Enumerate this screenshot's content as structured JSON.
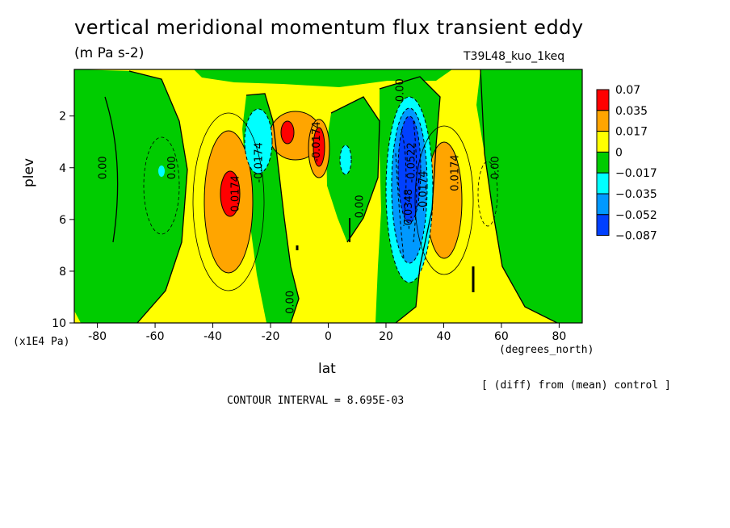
{
  "title": "vertical meridional momentum flux transient eddy",
  "units": "(m Pa s-2)",
  "run_id": "T39L48_kuo_1keq",
  "note": "[ (diff) from (mean) control ]",
  "contour_interval": "CONTOUR INTERVAL = 8.695E-03",
  "chart_data": {
    "type": "contour",
    "xlabel": "lat",
    "x_unit": "(degrees_north)",
    "ylabel": "plev",
    "y_unit": "(x1E4 Pa)",
    "xlim": [
      -88,
      88
    ],
    "ylim": [
      10,
      0.2
    ],
    "x_ticks": [
      -80,
      -60,
      -40,
      -20,
      0,
      20,
      40,
      60,
      80
    ],
    "y_ticks": [
      2,
      4,
      6,
      8,
      10
    ],
    "colorbar": {
      "labels": [
        "0.07",
        "0.035",
        "0.017",
        "0",
        "−0.017",
        "−0.035",
        "−0.052",
        "−0.087"
      ],
      "colors": [
        "#ff0000",
        "#ffa500",
        "#ffff00",
        "#00cc00",
        "#00ffff",
        "#0099ff",
        "#0040ff"
      ]
    },
    "contour_labels": [
      {
        "text": "0.00",
        "lat": -77,
        "plev": 4.0
      },
      {
        "text": "0.00",
        "lat": -53,
        "plev": 4.0
      },
      {
        "text": "0.0174",
        "lat": -31,
        "plev": 5.0
      },
      {
        "text": "-0.0174",
        "lat": -23,
        "plev": 3.8
      },
      {
        "text": "-0.0174",
        "lat": -3,
        "plev": 3.0
      },
      {
        "text": "0.00",
        "lat": -12,
        "plev": 9.2
      },
      {
        "text": "0.00",
        "lat": 12,
        "plev": 5.5
      },
      {
        "text": "0.00",
        "lat": 26,
        "plev": 1.0
      },
      {
        "text": "-0.0522",
        "lat": 30,
        "plev": 3.8
      },
      {
        "text": "-0.0174",
        "lat": 34,
        "plev": 4.9
      },
      {
        "text": "-0.0348",
        "lat": 29,
        "plev": 5.6
      },
      {
        "text": "0.0174",
        "lat": 45,
        "plev": 4.2
      },
      {
        "text": "0.00",
        "lat": 59,
        "plev": 4.0
      }
    ],
    "features": [
      {
        "name": "positive max SH",
        "lat": -33,
        "plev": 4.8,
        "level": "0.07"
      },
      {
        "name": "negative min SH",
        "lat": -22,
        "plev": 2.8,
        "level": "-0.035"
      },
      {
        "name": "positive max SH upper",
        "lat": -14,
        "plev": 2.6,
        "level": "0.07"
      },
      {
        "name": "positive max EQ",
        "lat": -3,
        "plev": 3.2,
        "level": "0.07"
      },
      {
        "name": "negative min NH",
        "lat": 27,
        "plev": 4.0,
        "level": "-0.087"
      },
      {
        "name": "positive max NH",
        "lat": 43,
        "plev": 4.5,
        "level": "0.035"
      }
    ]
  }
}
